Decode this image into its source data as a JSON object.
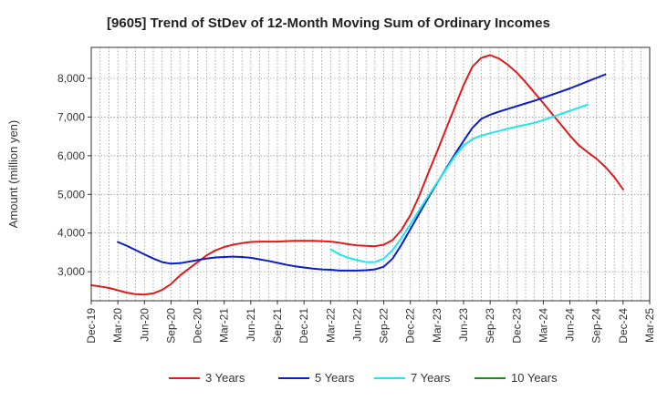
{
  "chart_data": {
    "type": "line",
    "title": "[9605]  Trend of StDev of 12-Month Moving Sum of Ordinary Incomes",
    "ylabel": "Amount (million yen)",
    "xlabel": "",
    "ylim": [
      2250,
      8800
    ],
    "y_ticks": [
      3000,
      4000,
      5000,
      6000,
      7000,
      8000
    ],
    "y_tick_labels": [
      "3,000",
      "4,000",
      "5,000",
      "6,000",
      "7,000",
      "8,000"
    ],
    "x_tick_labels": [
      "Dec-19",
      "Mar-20",
      "Jun-20",
      "Sep-20",
      "Dec-20",
      "Mar-21",
      "Jun-21",
      "Sep-21",
      "Dec-21",
      "Mar-22",
      "Jun-22",
      "Sep-22",
      "Dec-22",
      "Mar-23",
      "Jun-23",
      "Sep-23",
      "Dec-23",
      "Mar-24",
      "Jun-24",
      "Sep-24",
      "Dec-24",
      "Mar-25"
    ],
    "grid": true,
    "legend_position": "bottom",
    "series": [
      {
        "name": "3 Years",
        "color": "#e01b1b",
        "start_index": 0,
        "values": [
          2650,
          2620,
          2580,
          2520,
          2460,
          2420,
          2410,
          2440,
          2530,
          2680,
          2900,
          3080,
          3250,
          3420,
          3550,
          3640,
          3700,
          3740,
          3770,
          3780,
          3780,
          3780,
          3790,
          3800,
          3800,
          3800,
          3790,
          3780,
          3750,
          3710,
          3680,
          3670,
          3660,
          3700,
          3820,
          4080,
          4460,
          4960,
          5540,
          6100,
          6680,
          7250,
          7820,
          8300,
          8530,
          8600,
          8510,
          8350,
          8150,
          7900,
          7630,
          7360,
          7080,
          6800,
          6520,
          6270,
          6090,
          5920,
          5710,
          5450,
          5130
        ]
      },
      {
        "name": "5 Years",
        "color": "#0a1fc8",
        "start_index": 3,
        "values": [
          3770,
          3670,
          3560,
          3450,
          3340,
          3250,
          3210,
          3220,
          3260,
          3300,
          3340,
          3370,
          3380,
          3390,
          3380,
          3360,
          3320,
          3280,
          3230,
          3180,
          3140,
          3110,
          3080,
          3060,
          3050,
          3030,
          3030,
          3030,
          3040,
          3060,
          3130,
          3340,
          3700,
          4100,
          4500,
          4900,
          5290,
          5660,
          6030,
          6380,
          6720,
          6950,
          7060,
          7140,
          7210,
          7280,
          7350,
          7420,
          7500,
          7580,
          7660,
          7740,
          7830,
          7920,
          8010,
          8100
        ]
      },
      {
        "name": "7 Years",
        "color": "#1de8ee",
        "start_index": 27,
        "values": [
          3580,
          3450,
          3360,
          3300,
          3250,
          3250,
          3340,
          3560,
          3870,
          4230,
          4590,
          4950,
          5300,
          5640,
          5980,
          6260,
          6430,
          6520,
          6580,
          6640,
          6700,
          6750,
          6800,
          6850,
          6920,
          7000,
          7080,
          7160,
          7240,
          7320
        ]
      },
      {
        "name": "10 Years",
        "color": "#1a8a1a",
        "start_index": 0,
        "values": []
      }
    ]
  }
}
